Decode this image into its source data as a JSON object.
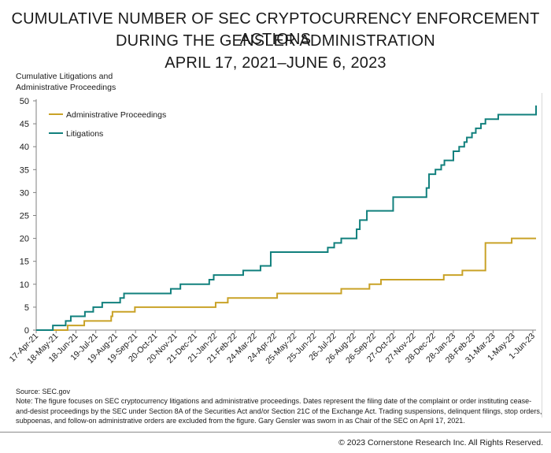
{
  "title_lines": [
    "CUMULATIVE NUMBER OF SEC CRYPTOCURRENCY ENFORCEMENT ACTIONS",
    "DURING THE GENSLER ADMINISTRATION",
    "APRIL 17, 2021–JUNE 6, 2023"
  ],
  "ylabel_lines": [
    "Cumulative Litigations and",
    "Administrative Proceedings"
  ],
  "source": "Source: SEC.gov",
  "note": "Note: The figure focuses on SEC cryptocurrency litigations and administrative proceedings. Dates represent the filing date of the complaint or order instituting cease-and-desist proceedings by the SEC under Section 8A of the Securities Act and/or Section 21C of the Exchange Act. Trading suspensions, delinquent filings, stop orders, subpoenas, and follow-on administrative orders are excluded from the figure. Gary Gensler was sworn in as Chair of the SEC on April 17, 2021.",
  "copyright": "© 2023 Cornerstone Research Inc. All Rights Reserved.",
  "chart_data": {
    "type": "line",
    "line_shape": "step",
    "title": "CUMULATIVE NUMBER OF SEC CRYPTOCURRENCY ENFORCEMENT ACTIONS DURING THE GENSLER ADMINISTRATION APRIL 17, 2021–JUNE 6, 2023",
    "ylabel": "Cumulative Litigations and Administrative Proceedings",
    "xlabel": "",
    "x_range": [
      "2021-04-17",
      "2023-06-06"
    ],
    "ylim": [
      0,
      50
    ],
    "yticks": [
      0,
      5,
      10,
      15,
      20,
      25,
      30,
      35,
      40,
      45,
      50
    ],
    "x_tick_labels": [
      "17-Apr-21",
      "18-May-21",
      "18-Jun-21",
      "19-Jul-21",
      "19-Aug-21",
      "19-Sep-21",
      "20-Oct-21",
      "20-Nov-21",
      "21-Dec-21",
      "21-Jan-22",
      "21-Feb-22",
      "24-Mar-22",
      "24-Apr-22",
      "25-May-22",
      "25-Jun-22",
      "26-Jul-22",
      "26-Aug-22",
      "26-Sep-22",
      "27-Oct-22",
      "27-Nov-22",
      "28-Dec-22",
      "28-Jan-23",
      "28-Feb-23",
      "31-Mar-23",
      "1-May-23",
      "1-Jun-23"
    ],
    "x_tick_dates": [
      "2021-04-17",
      "2021-05-18",
      "2021-06-18",
      "2021-07-19",
      "2021-08-19",
      "2021-09-19",
      "2021-10-20",
      "2021-11-20",
      "2021-12-21",
      "2022-01-21",
      "2022-02-21",
      "2022-03-24",
      "2022-04-24",
      "2022-05-25",
      "2022-06-25",
      "2022-07-26",
      "2022-08-26",
      "2022-09-26",
      "2022-10-27",
      "2022-11-27",
      "2022-12-28",
      "2023-01-28",
      "2023-02-28",
      "2023-03-31",
      "2023-05-01",
      "2023-06-01"
    ],
    "grid": false,
    "legend_position": "top-left",
    "series": [
      {
        "name": "Administrative Proceedings",
        "color": "#c9a227",
        "points": [
          [
            "2021-04-17",
            0
          ],
          [
            "2021-06-05",
            1
          ],
          [
            "2021-07-01",
            2
          ],
          [
            "2021-08-12",
            3
          ],
          [
            "2021-08-14",
            4
          ],
          [
            "2021-09-18",
            5
          ],
          [
            "2022-01-22",
            6
          ],
          [
            "2022-02-10",
            7
          ],
          [
            "2022-04-28",
            8
          ],
          [
            "2022-08-06",
            9
          ],
          [
            "2022-09-19",
            10
          ],
          [
            "2022-10-07",
            11
          ],
          [
            "2023-01-13",
            12
          ],
          [
            "2023-02-11",
            13
          ],
          [
            "2023-03-19",
            19
          ],
          [
            "2023-04-29",
            20
          ],
          [
            "2023-06-06",
            20
          ]
        ]
      },
      {
        "name": "Litigations",
        "color": "#11807d",
        "points": [
          [
            "2021-04-17",
            0
          ],
          [
            "2021-05-13",
            1
          ],
          [
            "2021-06-02",
            2
          ],
          [
            "2021-06-10",
            3
          ],
          [
            "2021-07-02",
            4
          ],
          [
            "2021-07-15",
            5
          ],
          [
            "2021-07-29",
            6
          ],
          [
            "2021-08-26",
            7
          ],
          [
            "2021-09-01",
            8
          ],
          [
            "2021-11-13",
            9
          ],
          [
            "2021-11-28",
            10
          ],
          [
            "2022-01-12",
            11
          ],
          [
            "2022-01-19",
            12
          ],
          [
            "2022-03-06",
            13
          ],
          [
            "2022-04-02",
            14
          ],
          [
            "2022-04-18",
            17
          ],
          [
            "2022-07-16",
            18
          ],
          [
            "2022-07-26",
            19
          ],
          [
            "2022-08-06",
            20
          ],
          [
            "2022-08-30",
            22
          ],
          [
            "2022-09-04",
            24
          ],
          [
            "2022-09-15",
            26
          ],
          [
            "2022-10-26",
            29
          ],
          [
            "2022-12-17",
            31
          ],
          [
            "2022-12-21",
            34
          ],
          [
            "2022-12-31",
            35
          ],
          [
            "2023-01-09",
            36
          ],
          [
            "2023-01-14",
            37
          ],
          [
            "2023-01-28",
            39
          ],
          [
            "2023-02-06",
            40
          ],
          [
            "2023-02-14",
            41
          ],
          [
            "2023-02-18",
            42
          ],
          [
            "2023-02-26",
            43
          ],
          [
            "2023-03-04",
            44
          ],
          [
            "2023-03-12",
            45
          ],
          [
            "2023-03-19",
            46
          ],
          [
            "2023-04-08",
            47
          ],
          [
            "2023-06-04",
            47
          ],
          [
            "2023-06-06",
            49
          ]
        ]
      }
    ]
  }
}
